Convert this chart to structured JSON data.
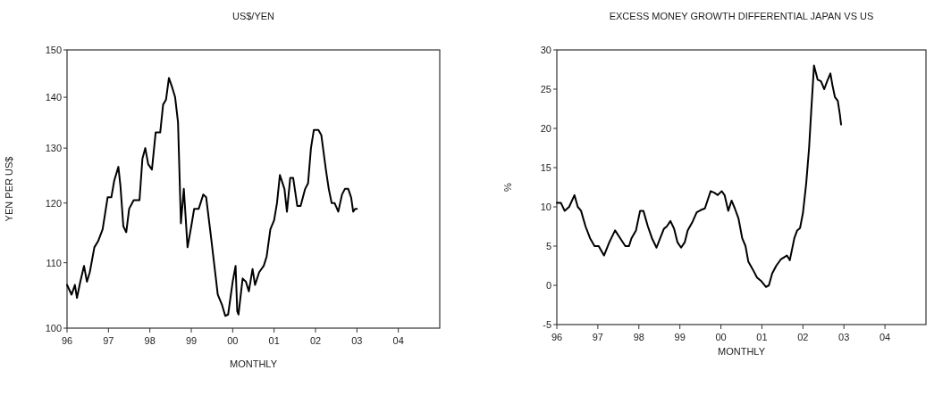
{
  "chart_data": [
    {
      "type": "line",
      "title": "US$/YEN",
      "xlabel": "MONTHLY",
      "ylabel": "YEN PER US$",
      "log": true,
      "color": "#000000",
      "xlim": [
        1996,
        2005
      ],
      "xticks": [
        {
          "value": 1996,
          "label": "96"
        },
        {
          "value": 1997,
          "label": "97"
        },
        {
          "value": 1998,
          "label": "98"
        },
        {
          "value": 1999,
          "label": "99"
        },
        {
          "value": 2000,
          "label": "00"
        },
        {
          "value": 2001,
          "label": "01"
        },
        {
          "value": 2002,
          "label": "02"
        },
        {
          "value": 2003,
          "label": "03"
        },
        {
          "value": 2004,
          "label": "04"
        }
      ],
      "ylim": [
        100,
        150
      ],
      "yticks": [
        100,
        110,
        120,
        130,
        140,
        150
      ],
      "x": [
        1996.0,
        1996.11,
        1996.19,
        1996.24,
        1996.32,
        1996.41,
        1996.48,
        1996.55,
        1996.66,
        1996.75,
        1996.86,
        1996.98,
        1997.07,
        1997.14,
        1997.24,
        1997.29,
        1997.36,
        1997.43,
        1997.5,
        1997.61,
        1997.75,
        1997.82,
        1997.89,
        1997.96,
        1998.05,
        1998.14,
        1998.25,
        1998.32,
        1998.39,
        1998.46,
        1998.54,
        1998.61,
        1998.68,
        1998.75,
        1998.82,
        1998.86,
        1998.91,
        1999.0,
        1999.07,
        1999.18,
        1999.29,
        1999.36,
        1999.48,
        1999.64,
        1999.74,
        1999.82,
        1999.89,
        2000.0,
        2000.07,
        2000.11,
        2000.14,
        2000.24,
        2000.32,
        2000.39,
        2000.48,
        2000.54,
        2000.64,
        2000.75,
        2000.82,
        2000.91,
        2001.0,
        2001.07,
        2001.14,
        2001.25,
        2001.31,
        2001.39,
        2001.46,
        2001.56,
        2001.64,
        2001.75,
        2001.82,
        2001.89,
        2001.96,
        2002.07,
        2002.14,
        2002.25,
        2002.32,
        2002.39,
        2002.46,
        2002.55,
        2002.64,
        2002.71,
        2002.79,
        2002.86,
        2002.91,
        2002.96,
        2003.0
      ],
      "values": [
        106.5,
        105,
        106.5,
        104.5,
        107,
        109.5,
        107,
        108.5,
        112.5,
        113.5,
        115.5,
        121,
        121,
        124,
        126.5,
        123,
        116,
        115,
        119,
        120.5,
        120.5,
        128,
        130,
        127,
        126,
        133,
        133,
        138.5,
        139.5,
        144,
        142,
        140,
        135,
        116.5,
        122.5,
        118,
        112.5,
        116,
        119,
        119,
        121.5,
        121,
        114,
        105,
        103.5,
        101.8,
        102,
        107,
        109.5,
        102.5,
        102,
        107.5,
        107,
        105.5,
        109,
        106.5,
        108.5,
        109.5,
        111,
        115.5,
        117,
        120,
        125,
        122.5,
        118.5,
        124.5,
        124.5,
        119.5,
        119.5,
        122.5,
        123.5,
        130,
        133.5,
        133.5,
        132.5,
        126,
        122.5,
        120,
        120,
        118.5,
        121.5,
        122.5,
        122.5,
        121,
        118.5,
        119,
        119
      ]
    },
    {
      "type": "line",
      "title": "EXCESS MONEY GROWTH DIFFERENTIAL JAPAN VS US",
      "xlabel": "MONTHLY",
      "ylabel": "%",
      "color": "#000000",
      "xlim": [
        1996,
        2005
      ],
      "xticks": [
        {
          "value": 1996,
          "label": "96"
        },
        {
          "value": 1997,
          "label": "97"
        },
        {
          "value": 1998,
          "label": "98"
        },
        {
          "value": 1999,
          "label": "99"
        },
        {
          "value": 2000,
          "label": "00"
        },
        {
          "value": 2001,
          "label": "01"
        },
        {
          "value": 2002,
          "label": "02"
        },
        {
          "value": 2003,
          "label": "03"
        },
        {
          "value": 2004,
          "label": "04"
        }
      ],
      "ylim": [
        -5,
        30
      ],
      "yticks": [
        -5,
        0,
        5,
        10,
        15,
        20,
        25,
        30
      ],
      "x": [
        1996.0,
        1996.1,
        1996.19,
        1996.3,
        1996.43,
        1996.51,
        1996.59,
        1996.7,
        1996.81,
        1996.92,
        1997.02,
        1997.15,
        1997.28,
        1997.42,
        1997.57,
        1997.67,
        1997.76,
        1997.82,
        1997.93,
        1998.03,
        1998.11,
        1998.22,
        1998.32,
        1998.43,
        1998.52,
        1998.61,
        1998.68,
        1998.77,
        1998.86,
        1998.94,
        1999.03,
        1999.12,
        1999.19,
        1999.3,
        1999.41,
        1999.51,
        1999.61,
        1999.75,
        1999.84,
        1999.92,
        2000.02,
        2000.09,
        2000.18,
        2000.26,
        2000.34,
        2000.43,
        2000.52,
        2000.6,
        2000.67,
        2000.78,
        2000.88,
        2000.99,
        2001.1,
        2001.17,
        2001.25,
        2001.35,
        2001.46,
        2001.61,
        2001.68,
        2001.79,
        2001.86,
        2001.93,
        2002.0,
        2002.08,
        2002.15,
        2002.2,
        2002.27,
        2002.36,
        2002.44,
        2002.52,
        2002.59,
        2002.67,
        2002.72,
        2002.78,
        2002.85,
        2002.9,
        2002.93
      ],
      "values": [
        10.5,
        10.5,
        9.5,
        10,
        11.5,
        10,
        9.5,
        7.5,
        6,
        5,
        5,
        3.8,
        5.5,
        7,
        5.8,
        5,
        5,
        6,
        7,
        9.5,
        9.5,
        7.5,
        6,
        4.8,
        6,
        7.2,
        7.5,
        8.2,
        7.2,
        5.5,
        4.8,
        5.5,
        7,
        8,
        9.3,
        9.6,
        9.8,
        12,
        11.8,
        11.5,
        12,
        11.5,
        9.5,
        10.8,
        9.8,
        8.5,
        6,
        5,
        3,
        2,
        1,
        0.5,
        -0.2,
        0,
        1.5,
        2.5,
        3.3,
        3.8,
        3.2,
        6,
        7,
        7.3,
        9.2,
        13,
        17.5,
        22,
        28,
        26.2,
        26,
        25,
        26,
        27,
        25.5,
        24,
        23.5,
        21.8,
        20.5
      ]
    }
  ]
}
